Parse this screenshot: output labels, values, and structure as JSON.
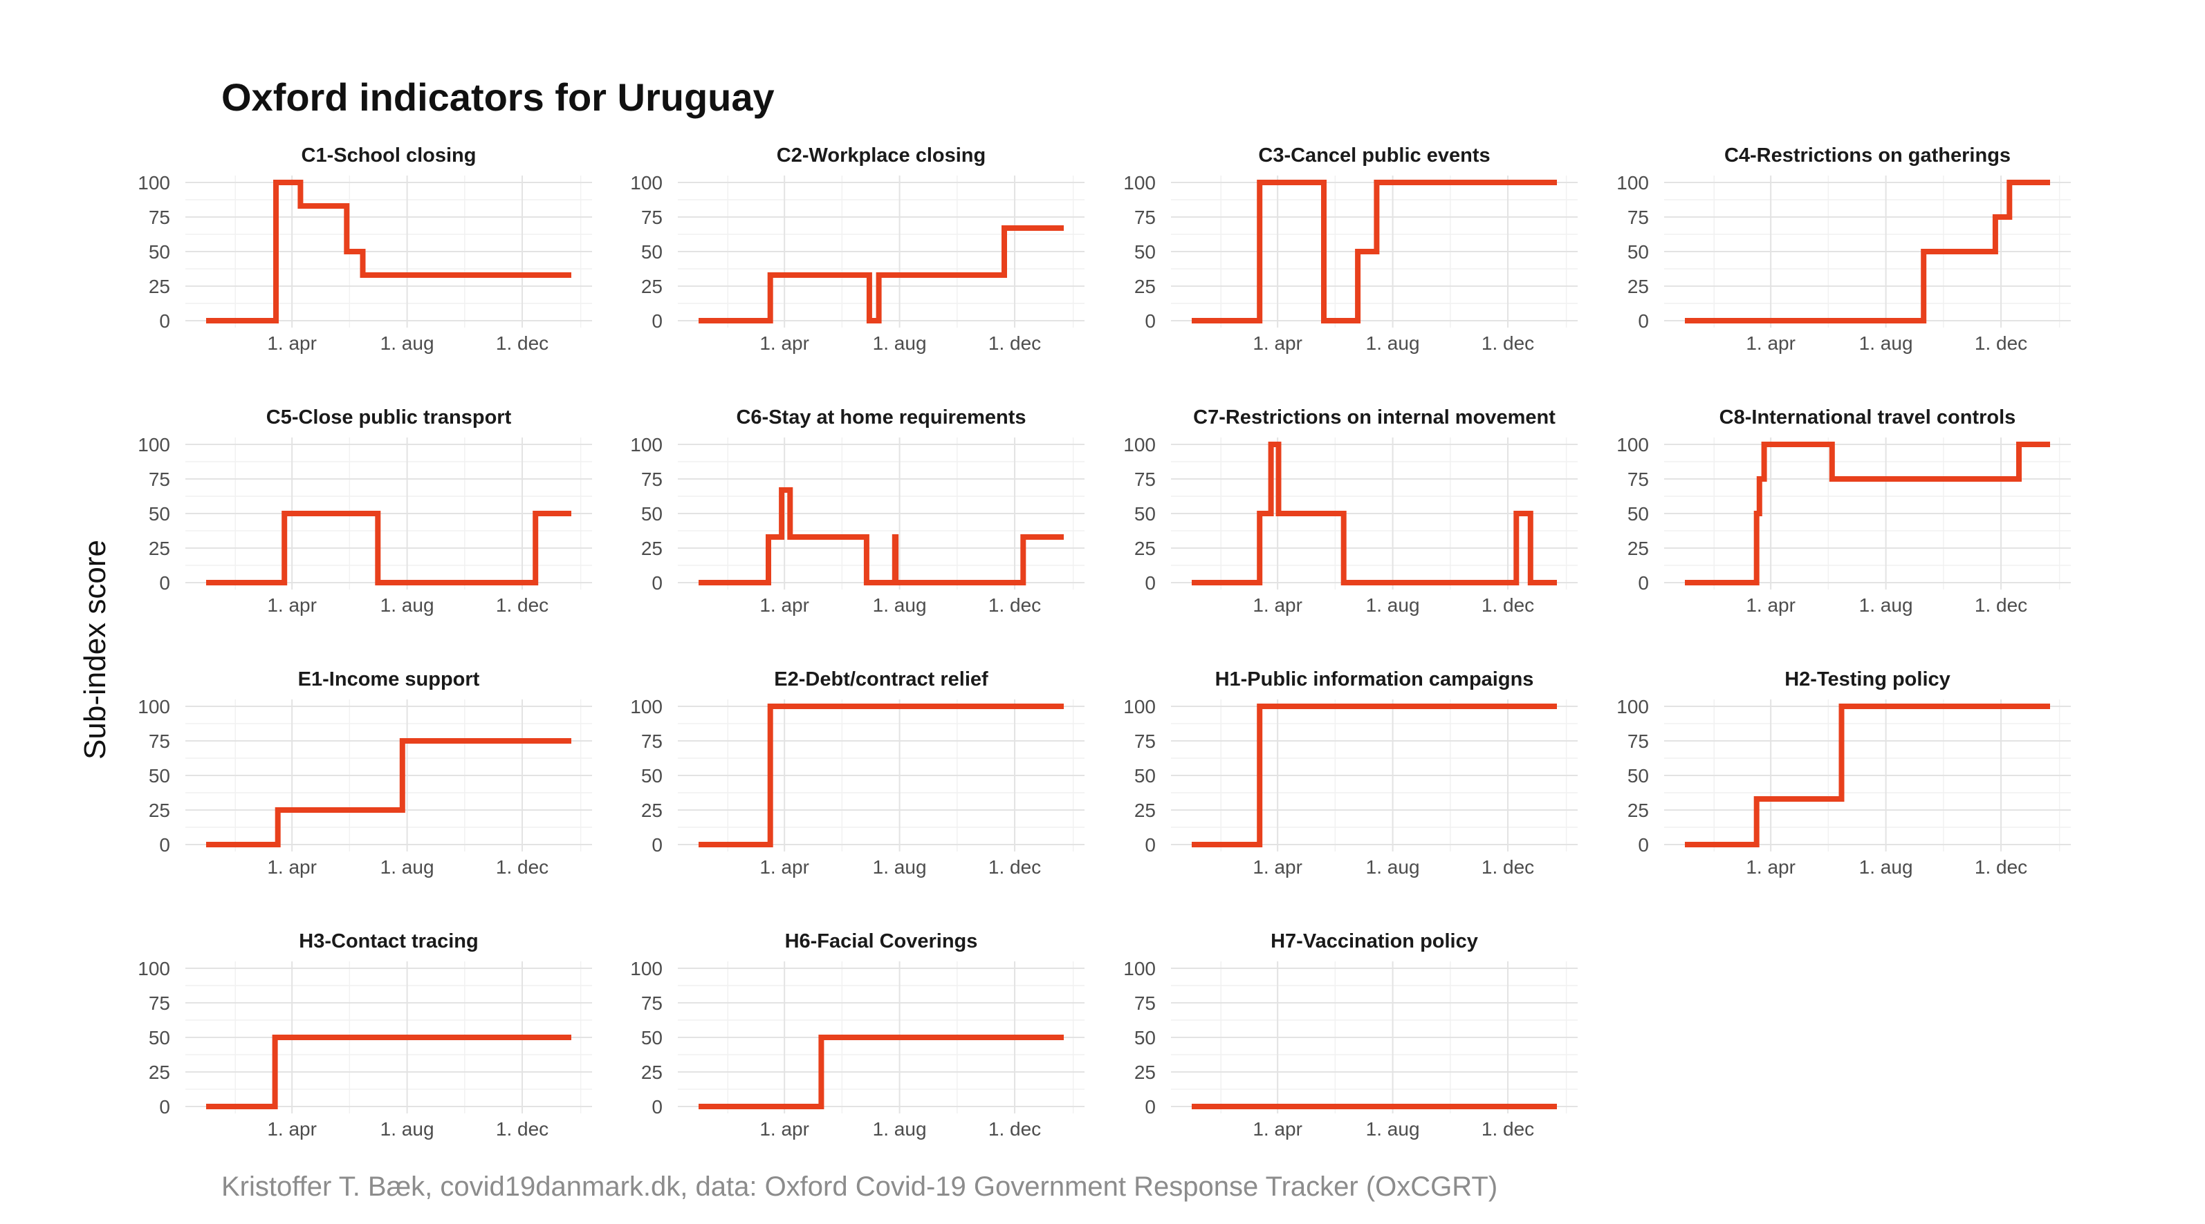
{
  "chart_data": {
    "type": "line",
    "title": "Oxford indicators for Uruguay",
    "ylabel": "Sub-index score",
    "caption": "Kristoffer T. Bæk, covid19danmark.dk, data: Oxford Covid-19 Government Response Tracker (OxCGRT)",
    "line_color": "#e8401c",
    "ylim": [
      0,
      100
    ],
    "y_ticks": [
      "0",
      "25",
      "50",
      "75",
      "100"
    ],
    "x_ticks": [
      "1. apr",
      "1. aug",
      "1. dec"
    ],
    "x_tick_dates": [
      "2020-04-01",
      "2020-08-01",
      "2020-12-01"
    ],
    "x_range": [
      "2020-01-01",
      "2021-01-22"
    ],
    "grid": true,
    "panels": [
      {
        "title": "C1-School closing",
        "steps": [
          [
            "2020-01-01",
            0
          ],
          [
            "2020-03-15",
            100
          ],
          [
            "2020-04-10",
            83
          ],
          [
            "2020-05-29",
            50
          ],
          [
            "2020-06-15",
            33
          ],
          [
            "2021-01-22",
            33
          ]
        ]
      },
      {
        "title": "C2-Workplace closing",
        "steps": [
          [
            "2020-01-01",
            0
          ],
          [
            "2020-03-17",
            33
          ],
          [
            "2020-06-30",
            0
          ],
          [
            "2020-07-10",
            33
          ],
          [
            "2020-11-20",
            67
          ],
          [
            "2021-01-22",
            67
          ]
        ]
      },
      {
        "title": "C3-Cancel public events",
        "steps": [
          [
            "2020-01-01",
            0
          ],
          [
            "2020-03-13",
            100
          ],
          [
            "2020-05-20",
            0
          ],
          [
            "2020-06-25",
            50
          ],
          [
            "2020-07-15",
            100
          ],
          [
            "2021-01-22",
            100
          ]
        ]
      },
      {
        "title": "C4-Restrictions on gatherings",
        "steps": [
          [
            "2020-01-01",
            0
          ],
          [
            "2020-09-10",
            50
          ],
          [
            "2020-11-25",
            75
          ],
          [
            "2020-12-10",
            100
          ],
          [
            "2021-01-22",
            100
          ]
        ]
      },
      {
        "title": "C5-Close public transport",
        "steps": [
          [
            "2020-01-01",
            0
          ],
          [
            "2020-03-24",
            50
          ],
          [
            "2020-07-01",
            0
          ],
          [
            "2020-12-15",
            50
          ],
          [
            "2021-01-22",
            50
          ]
        ]
      },
      {
        "title": "C6-Stay at home requirements",
        "steps": [
          [
            "2020-01-01",
            0
          ],
          [
            "2020-03-15",
            33
          ],
          [
            "2020-03-29",
            67
          ],
          [
            "2020-04-07",
            33
          ],
          [
            "2020-06-27",
            0
          ],
          [
            "2020-07-27",
            33
          ],
          [
            "2020-07-28",
            0
          ],
          [
            "2020-12-10",
            33
          ],
          [
            "2021-01-22",
            33
          ]
        ]
      },
      {
        "title": "C7-Restrictions on internal movement",
        "steps": [
          [
            "2020-01-01",
            0
          ],
          [
            "2020-03-13",
            50
          ],
          [
            "2020-03-25",
            100
          ],
          [
            "2020-04-02",
            50
          ],
          [
            "2020-06-10",
            0
          ],
          [
            "2020-12-10",
            50
          ],
          [
            "2020-12-25",
            0
          ],
          [
            "2021-01-22",
            0
          ]
        ]
      },
      {
        "title": "C8-International travel controls",
        "steps": [
          [
            "2020-01-01",
            0
          ],
          [
            "2020-03-17",
            50
          ],
          [
            "2020-03-20",
            75
          ],
          [
            "2020-03-25",
            100
          ],
          [
            "2020-06-05",
            75
          ],
          [
            "2020-12-20",
            100
          ],
          [
            "2021-01-22",
            100
          ]
        ]
      },
      {
        "title": "E1-Income support",
        "steps": [
          [
            "2020-01-01",
            0
          ],
          [
            "2020-03-17",
            25
          ],
          [
            "2020-07-27",
            75
          ],
          [
            "2021-01-22",
            75
          ]
        ]
      },
      {
        "title": "E2-Debt/contract relief",
        "steps": [
          [
            "2020-01-01",
            0
          ],
          [
            "2020-03-17",
            100
          ],
          [
            "2021-01-22",
            100
          ]
        ]
      },
      {
        "title": "H1-Public information campaigns",
        "steps": [
          [
            "2020-01-01",
            0
          ],
          [
            "2020-03-13",
            100
          ],
          [
            "2021-01-22",
            100
          ]
        ]
      },
      {
        "title": "H2-Testing policy",
        "steps": [
          [
            "2020-01-01",
            0
          ],
          [
            "2020-03-17",
            33
          ],
          [
            "2020-06-15",
            100
          ],
          [
            "2021-01-22",
            100
          ]
        ]
      },
      {
        "title": "H3-Contact tracing",
        "steps": [
          [
            "2020-01-01",
            0
          ],
          [
            "2020-03-14",
            50
          ],
          [
            "2021-01-22",
            50
          ]
        ]
      },
      {
        "title": "H6-Facial Coverings",
        "steps": [
          [
            "2020-01-01",
            0
          ],
          [
            "2020-05-10",
            50
          ],
          [
            "2021-01-22",
            50
          ]
        ]
      },
      {
        "title": "H7-Vaccination policy",
        "steps": [
          [
            "2020-01-01",
            0
          ],
          [
            "2021-01-22",
            0
          ]
        ]
      }
    ]
  }
}
